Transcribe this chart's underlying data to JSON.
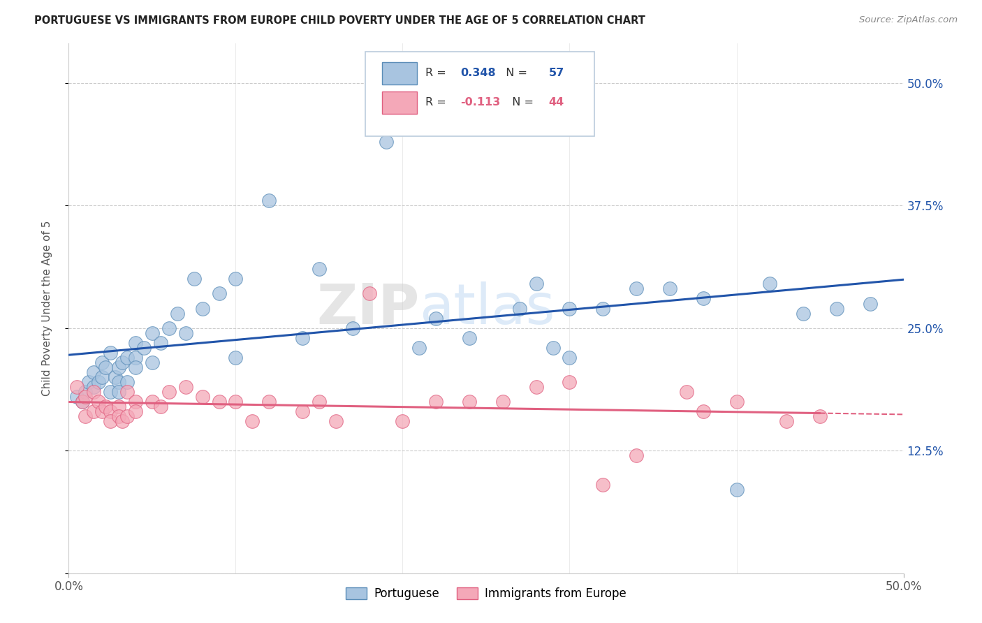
{
  "title": "PORTUGUESE VS IMMIGRANTS FROM EUROPE CHILD POVERTY UNDER THE AGE OF 5 CORRELATION CHART",
  "source": "Source: ZipAtlas.com",
  "xmin": 0.0,
  "xmax": 0.5,
  "ymin": 0.03,
  "ymax": 0.54,
  "ytick_positions": [
    0.0,
    0.125,
    0.25,
    0.375,
    0.5
  ],
  "ytick_labels": [
    "",
    "12.5%",
    "25.0%",
    "37.5%",
    "50.0%"
  ],
  "blue_R": 0.348,
  "blue_N": 57,
  "pink_R": -0.113,
  "pink_N": 44,
  "blue_color": "#A8C4E0",
  "pink_color": "#F4A8B8",
  "blue_edge_color": "#5B8DB8",
  "pink_edge_color": "#E06080",
  "blue_line_color": "#2255AA",
  "pink_line_color": "#E06080",
  "legend_label_blue": "Portuguese",
  "legend_label_pink": "Immigrants from Europe",
  "watermark": "ZIPatlas",
  "background_color": "#FFFFFF",
  "grid_color": "#CCCCCC",
  "blue_x": [
    0.005,
    0.008,
    0.01,
    0.012,
    0.015,
    0.015,
    0.018,
    0.02,
    0.02,
    0.022,
    0.025,
    0.025,
    0.028,
    0.03,
    0.03,
    0.03,
    0.032,
    0.035,
    0.035,
    0.04,
    0.04,
    0.04,
    0.045,
    0.05,
    0.05,
    0.055,
    0.06,
    0.065,
    0.07,
    0.075,
    0.08,
    0.09,
    0.1,
    0.1,
    0.12,
    0.14,
    0.15,
    0.17,
    0.19,
    0.21,
    0.22,
    0.24,
    0.25,
    0.27,
    0.28,
    0.29,
    0.3,
    0.3,
    0.32,
    0.34,
    0.36,
    0.38,
    0.4,
    0.42,
    0.44,
    0.46,
    0.48
  ],
  "blue_y": [
    0.18,
    0.175,
    0.185,
    0.195,
    0.19,
    0.205,
    0.195,
    0.2,
    0.215,
    0.21,
    0.185,
    0.225,
    0.2,
    0.21,
    0.195,
    0.185,
    0.215,
    0.195,
    0.22,
    0.22,
    0.21,
    0.235,
    0.23,
    0.215,
    0.245,
    0.235,
    0.25,
    0.265,
    0.245,
    0.3,
    0.27,
    0.285,
    0.3,
    0.22,
    0.38,
    0.24,
    0.31,
    0.25,
    0.44,
    0.23,
    0.26,
    0.24,
    0.47,
    0.27,
    0.295,
    0.23,
    0.27,
    0.22,
    0.27,
    0.29,
    0.29,
    0.28,
    0.085,
    0.295,
    0.265,
    0.27,
    0.275
  ],
  "pink_x": [
    0.005,
    0.008,
    0.01,
    0.01,
    0.015,
    0.015,
    0.018,
    0.02,
    0.022,
    0.025,
    0.025,
    0.03,
    0.03,
    0.032,
    0.035,
    0.035,
    0.04,
    0.04,
    0.05,
    0.055,
    0.06,
    0.07,
    0.08,
    0.09,
    0.1,
    0.11,
    0.12,
    0.14,
    0.15,
    0.16,
    0.18,
    0.2,
    0.22,
    0.24,
    0.26,
    0.28,
    0.3,
    0.32,
    0.34,
    0.37,
    0.38,
    0.4,
    0.43,
    0.45
  ],
  "pink_y": [
    0.19,
    0.175,
    0.18,
    0.16,
    0.165,
    0.185,
    0.175,
    0.165,
    0.17,
    0.165,
    0.155,
    0.17,
    0.16,
    0.155,
    0.185,
    0.16,
    0.175,
    0.165,
    0.175,
    0.17,
    0.185,
    0.19,
    0.18,
    0.175,
    0.175,
    0.155,
    0.175,
    0.165,
    0.175,
    0.155,
    0.285,
    0.155,
    0.175,
    0.175,
    0.175,
    0.19,
    0.195,
    0.09,
    0.12,
    0.185,
    0.165,
    0.175,
    0.155,
    0.16
  ]
}
